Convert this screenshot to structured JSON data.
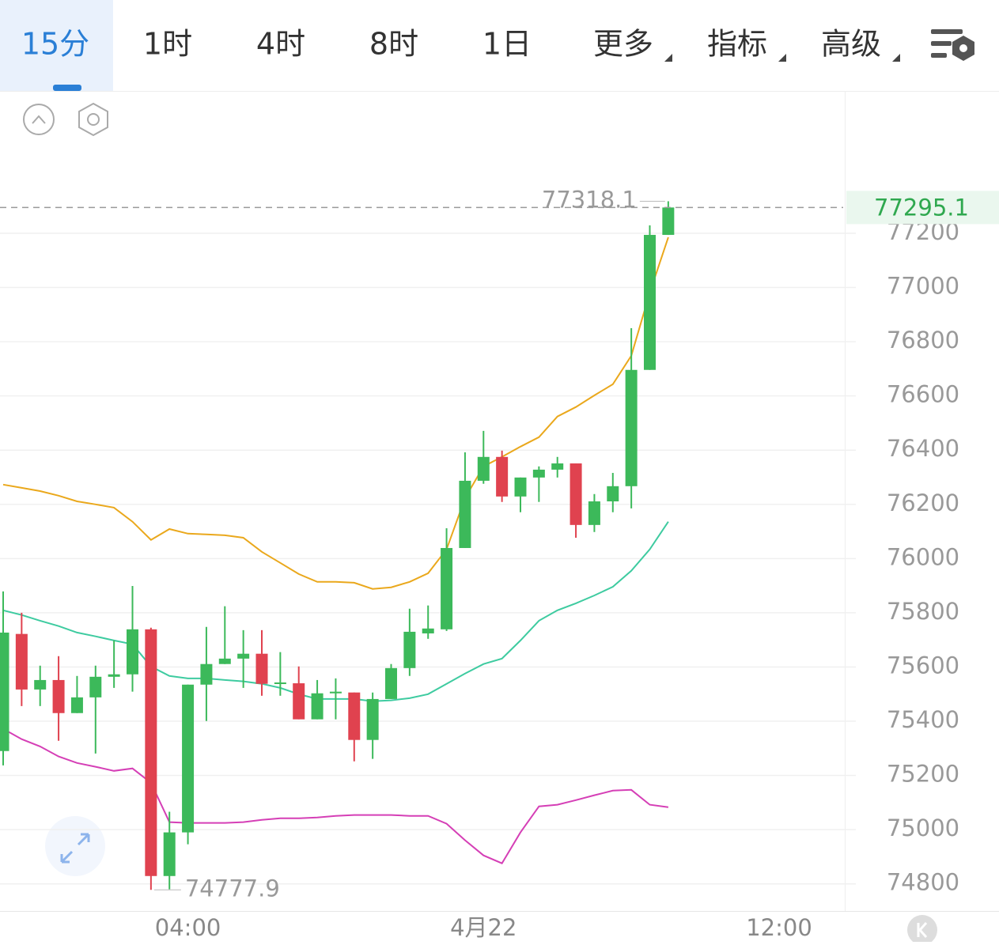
{
  "tabs": [
    "15分",
    "1时",
    "4时",
    "8时",
    "1日",
    "更多",
    "指标",
    "高级"
  ],
  "chart_data": {
    "type": "candlestick",
    "categories": [
      null,
      null,
      null,
      null,
      null,
      null,
      null,
      null,
      null,
      null,
      "04:00",
      null,
      null,
      null,
      null,
      null,
      null,
      null,
      null,
      null,
      null,
      null,
      null,
      null,
      null,
      null,
      "4月22",
      null,
      null,
      null,
      null,
      null,
      null,
      null,
      null,
      null,
      null,
      null,
      null,
      null,
      null,
      null,
      "12:00"
    ],
    "open": [
      75290,
      75722,
      75517,
      75552,
      75430,
      75488,
      75564,
      75573,
      75739,
      74829,
      74990,
      75535,
      75611,
      75631,
      75649,
      75538,
      75540,
      75407,
      75503,
      75506,
      75331,
      75482,
      75596,
      75724,
      75739,
      76039,
      76287,
      76375,
      76229,
      76299,
      76328,
      76351,
      76124,
      76211,
      76267,
      76696,
      77194,
      null,
      null,
      null,
      null,
      null,
      null
    ],
    "high": [
      75879,
      75800,
      75605,
      75640,
      75567,
      75605,
      75698,
      75899,
      75745,
      75066,
      75535,
      75748,
      75824,
      75736,
      75736,
      75655,
      75602,
      75552,
      75558,
      75506,
      75506,
      75611,
      75815,
      75827,
      76112,
      76392,
      76471,
      76398,
      76299,
      76340,
      76375,
      76351,
      76238,
      76316,
      76850,
      77229,
      77318.1,
      null,
      null,
      null,
      null,
      null,
      null
    ],
    "low": [
      75237,
      75456,
      75456,
      75328,
      75430,
      75281,
      75523,
      75509,
      74777.9,
      74780,
      74946,
      75401,
      75611,
      75523,
      75494,
      75494,
      75407,
      75407,
      75407,
      75252,
      75261,
      75482,
      75567,
      75704,
      75733,
      76039,
      76276,
      76209,
      76171,
      76209,
      76299,
      76077,
      76098,
      76171,
      76185,
      76696,
      77194,
      null,
      null,
      null,
      null,
      null,
      null
    ],
    "close": [
      75727,
      75517,
      75552,
      75430,
      75488,
      75564,
      75573,
      75739,
      74829,
      74990,
      75535,
      75611,
      75631,
      75649,
      75538,
      75543,
      75407,
      75503,
      75509,
      75331,
      75482,
      75596,
      75730,
      75742,
      76039,
      76287,
      76375,
      76229,
      76299,
      76328,
      76351,
      76124,
      76211,
      76267,
      76696,
      77194,
      77295.1,
      null,
      null,
      null,
      null,
      null,
      null
    ],
    "up_color": "#3cb95a",
    "down_color": "#e0424f",
    "lines": [
      {
        "color": "#eaa81c",
        "values": [
          76273,
          76261,
          76249,
          76232,
          76211,
          76200,
          76188,
          76136,
          76069,
          76109,
          76092,
          76089,
          76086,
          76077,
          76025,
          75984,
          75943,
          75914,
          75914,
          75911,
          75888,
          75894,
          75914,
          75946,
          76034,
          76223,
          76340,
          76375,
          76413,
          76448,
          76524,
          76559,
          76602,
          76643,
          76748,
          76981,
          77185,
          null,
          null,
          null,
          null,
          null,
          null
        ]
      },
      {
        "color": "#3ecba0",
        "values": [
          75809,
          75792,
          75771,
          75751,
          75727,
          75713,
          75698,
          75684,
          75602,
          75567,
          75558,
          75558,
          75552,
          75547,
          75538,
          75523,
          75500,
          75482,
          75482,
          75482,
          75474,
          75477,
          75485,
          75500,
          75538,
          75576,
          75611,
          75631,
          75698,
          75771,
          75809,
          75835,
          75864,
          75896,
          75955,
          76034,
          76136,
          null,
          null,
          null,
          null,
          null,
          null
        ]
      },
      {
        "color": "#d53fb6",
        "values": [
          75372,
          75334,
          75307,
          75270,
          75246,
          75232,
          75217,
          75226,
          75173,
          75028,
          75025,
          75025,
          75025,
          75028,
          75036,
          75042,
          75042,
          75045,
          75051,
          75054,
          75054,
          75054,
          75051,
          75051,
          75022,
          74961,
          74905,
          74876,
          74990,
          75086,
          75092,
          75109,
          75127,
          75144,
          75147,
          75092,
          75083,
          null,
          null,
          null,
          null,
          null,
          null
        ]
      }
    ],
    "ylim": [
      74700,
      77725
    ],
    "yticks": [
      74800,
      75000,
      75200,
      75400,
      75600,
      75800,
      76000,
      76200,
      76400,
      76600,
      76800,
      77000,
      77200
    ],
    "grid": true
  }
}
